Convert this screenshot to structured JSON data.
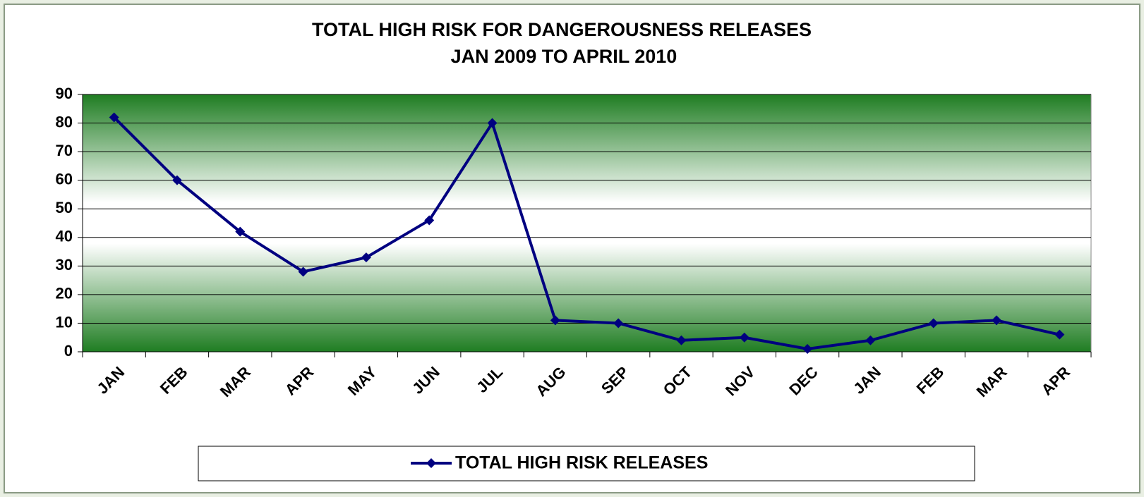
{
  "chart_data": {
    "type": "line",
    "title": "TOTAL HIGH RISK FOR DANGEROUSNESS  RELEASES",
    "subtitle": "JAN 2009  TO APRIL 2010",
    "categories": [
      "JAN",
      "FEB",
      "MAR",
      "APR",
      "MAY",
      "JUN",
      "JUL",
      "AUG",
      "SEP",
      "OCT",
      "NOV",
      "DEC",
      "JAN",
      "FEB",
      "MAR",
      "APR"
    ],
    "series": [
      {
        "name": "TOTAL HIGH RISK RELEASES",
        "color": "#000080",
        "values": [
          82,
          60,
          42,
          28,
          33,
          46,
          80,
          11,
          10,
          4,
          5,
          1,
          4,
          10,
          11,
          6
        ]
      }
    ],
    "ylim": [
      0,
      90
    ],
    "yticks": [
      0,
      10,
      20,
      30,
      40,
      50,
      60,
      70,
      80,
      90
    ],
    "grid": true,
    "legend": "bottom"
  }
}
